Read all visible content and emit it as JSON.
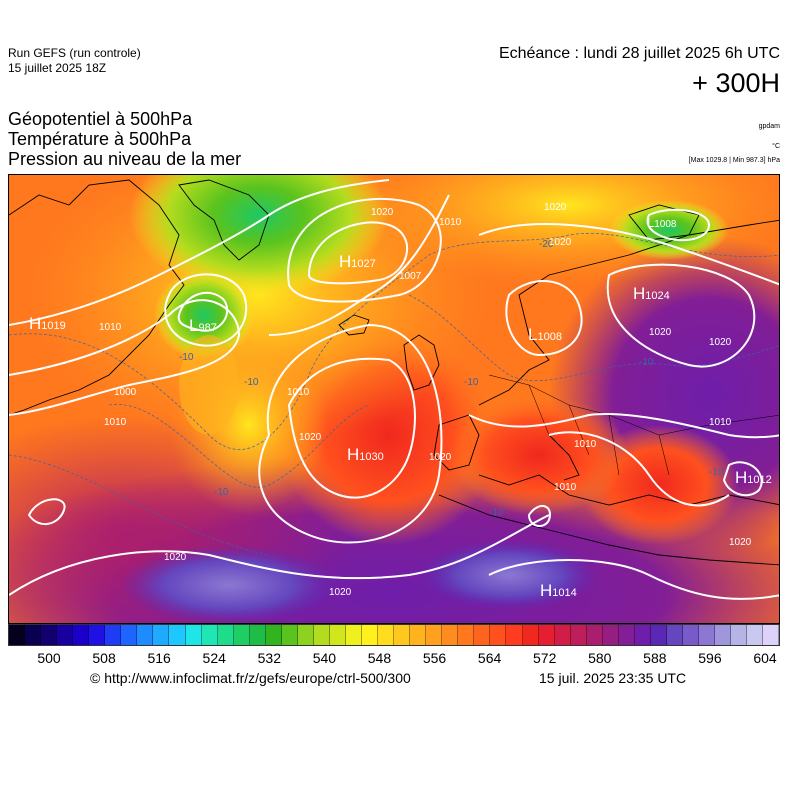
{
  "header": {
    "run_name": "Run GEFS (run controle)",
    "run_date": "15 juillet 2025 18Z",
    "valid_time": "Echéance : lundi 28 juillet 2025 6h UTC",
    "lead_time": "+ 300H"
  },
  "parameters": {
    "geopotential": "Géopotentiel à 500hPa",
    "temperature": "Température à 500hPa",
    "mslp": "Pression au niveau de la mer"
  },
  "units": {
    "geopotential": "gpdam",
    "temperature": "°C",
    "mslp_range": "[Max 1029.8 | Min 987.3] hPa"
  },
  "pressure_centers": [
    {
      "type": "H",
      "value": "1019"
    },
    {
      "type": "L",
      "value": "987"
    },
    {
      "type": "H",
      "value": "1027"
    },
    {
      "type": "H",
      "value": "1030"
    },
    {
      "type": "L",
      "value": "1008"
    },
    {
      "type": "H",
      "value": "1024"
    },
    {
      "type": "H",
      "value": "1012"
    },
    {
      "type": "H",
      "value": "1014"
    },
    {
      "type": "L",
      "value": "1008"
    }
  ],
  "isobar_labels": [
    "1020",
    "1010",
    "1007",
    "1010",
    "1000",
    "1010",
    "1010",
    "1020",
    "1020",
    "1020",
    "1020",
    "1010",
    "1020",
    "1010",
    "1020",
    "1020",
    "1010",
    "1020",
    "1020"
  ],
  "isotherm_labels": [
    "-10",
    "-10",
    "-10",
    "-20",
    "-10",
    "-10",
    "-10",
    "-10"
  ],
  "color_scale": {
    "colors": [
      "#05001e",
      "#0a0050",
      "#120070",
      "#1800a0",
      "#1a00c8",
      "#1f10e6",
      "#1f3cf5",
      "#1e64ff",
      "#1e8cff",
      "#1eaaff",
      "#1ec8ff",
      "#1ee6e6",
      "#1ee6b4",
      "#1edc8c",
      "#1ecd64",
      "#1ebe46",
      "#32b41e",
      "#5ac31e",
      "#8cd21e",
      "#b4dc1e",
      "#d2e61e",
      "#f0f01e",
      "#fff01e",
      "#ffdc1e",
      "#ffc81e",
      "#ffb41e",
      "#ffa01e",
      "#ff8c1e",
      "#ff781e",
      "#ff641e",
      "#ff501e",
      "#ff3c1e",
      "#f0281e",
      "#e61e32",
      "#d21e46",
      "#be1e5a",
      "#aa1e6e",
      "#961e82",
      "#821e96",
      "#6e1eaa",
      "#5a28b4",
      "#6446be",
      "#785ac8",
      "#8c78d2",
      "#a096dc",
      "#b4b4e6",
      "#c8c8f0",
      "#dcd2fa"
    ],
    "ticks": [
      "500",
      "508",
      "516",
      "524",
      "532",
      "540",
      "548",
      "556",
      "564",
      "572",
      "580",
      "588",
      "596",
      "604"
    ]
  },
  "footer": {
    "credit": "© http://www.infoclimat.fr/z/gefs/europe/ctrl-500/300",
    "timestamp": "15 juil. 2025 23:35 UTC"
  }
}
